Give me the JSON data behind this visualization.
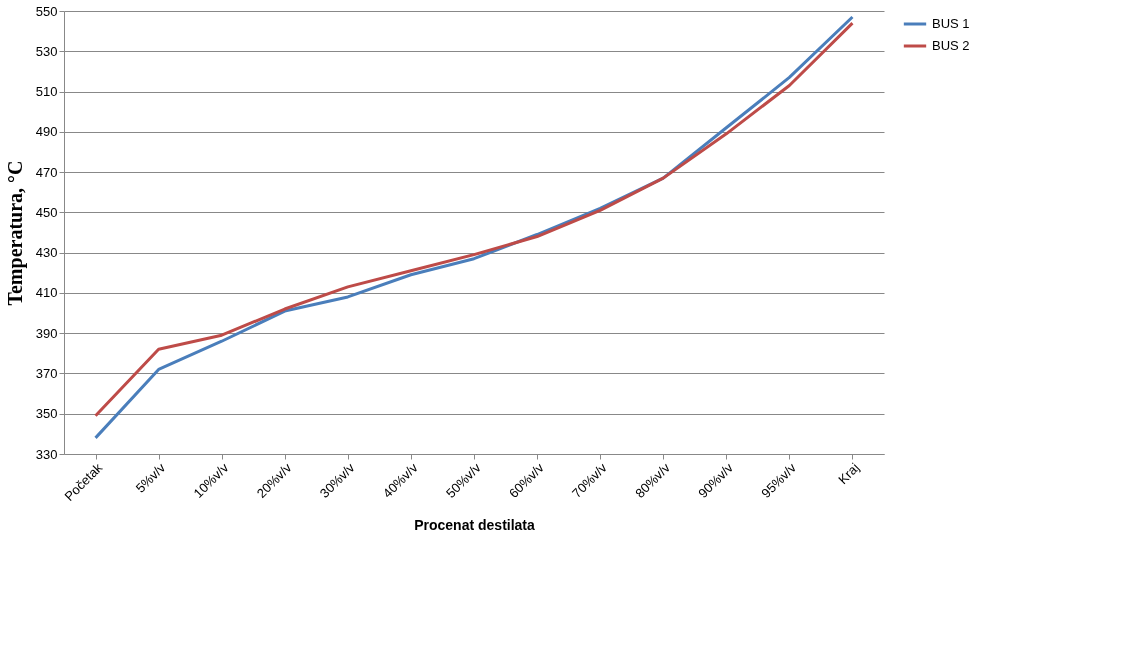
{
  "chart_data": {
    "type": "line",
    "xlabel": "Procenat destilata",
    "ylabel": "Temperatura, °C",
    "categories": [
      "Početak",
      "5%v/v",
      "10%v/v",
      "20%v/v",
      "30%v/v",
      "40%v/v",
      "50%v/v",
      "60%v/v",
      "70%v/v",
      "80%v/v",
      "90%v/v",
      "95%v/v",
      "Kraj"
    ],
    "series": [
      {
        "name": "BUS 1",
        "color": "#4a7ebb",
        "values": [
          338,
          372,
          386,
          401,
          408,
          419,
          427,
          439,
          452,
          467,
          492,
          517,
          547
        ]
      },
      {
        "name": "BUS 2",
        "color": "#be4b48",
        "values": [
          349,
          382,
          389,
          402,
          413,
          421,
          429,
          438,
          451,
          467,
          489,
          513,
          544
        ]
      }
    ],
    "ylim": [
      330,
      550
    ],
    "yticks": [
      330,
      350,
      370,
      390,
      410,
      430,
      450,
      470,
      490,
      510,
      530,
      550
    ],
    "grid": "y",
    "legend": "right",
    "marker": "none",
    "line_style": "solid"
  }
}
